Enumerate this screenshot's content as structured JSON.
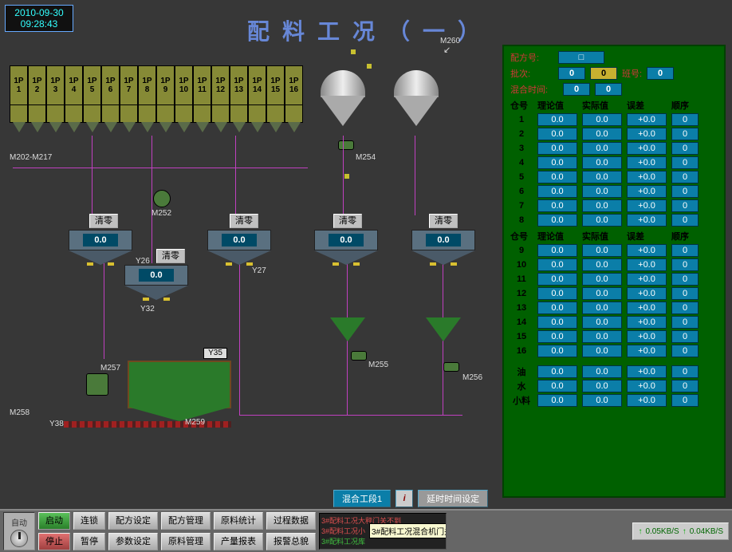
{
  "datetime": {
    "date": "2010-09-30",
    "time": "09:28:43"
  },
  "title": "配料工况（一）",
  "bins": [
    "1P1",
    "1P2",
    "1P3",
    "1P4",
    "1P5",
    "1P6",
    "1P7",
    "1P8",
    "1P9",
    "1P10",
    "1P11",
    "1P12",
    "1P13",
    "1P14",
    "1P15",
    "1P16"
  ],
  "bin_range_label": "M202-M217",
  "qingling": "清零",
  "scales": {
    "s1": "0.0",
    "s2": "0.0",
    "s3": "0.0",
    "s4": "0.0",
    "s5": "0.0"
  },
  "labels": {
    "M252": "M252",
    "M254": "M254",
    "M255": "M255",
    "M256": "M256",
    "M257": "M257",
    "M258": "M258",
    "M259": "M259",
    "M260": "M260",
    "Y26": "Y26",
    "Y27": "Y27",
    "Y32": "Y32",
    "Y35": "Y35",
    "Y38": "Y38"
  },
  "side": {
    "recipe_label": "配方号:",
    "recipe": "□",
    "batch_label": "批次:",
    "batch1": "0",
    "batch2": "0",
    "shift_label": "班号:",
    "shift": "0",
    "mixtime_label": "混合时间:",
    "mt1": "0",
    "mt2": "0",
    "hdr": [
      "仓号",
      "理论值",
      "实际值",
      "误差",
      "顺序"
    ],
    "rows1": [
      {
        "i": "1",
        "t": "0.0",
        "a": "0.0",
        "e": "+0.0",
        "o": "0"
      },
      {
        "i": "2",
        "t": "0.0",
        "a": "0.0",
        "e": "+0.0",
        "o": "0"
      },
      {
        "i": "3",
        "t": "0.0",
        "a": "0.0",
        "e": "+0.0",
        "o": "0"
      },
      {
        "i": "4",
        "t": "0.0",
        "a": "0.0",
        "e": "+0.0",
        "o": "0"
      },
      {
        "i": "5",
        "t": "0.0",
        "a": "0.0",
        "e": "+0.0",
        "o": "0"
      },
      {
        "i": "6",
        "t": "0.0",
        "a": "0.0",
        "e": "+0.0",
        "o": "0"
      },
      {
        "i": "7",
        "t": "0.0",
        "a": "0.0",
        "e": "+0.0",
        "o": "0"
      },
      {
        "i": "8",
        "t": "0.0",
        "a": "0.0",
        "e": "+0.0",
        "o": "0"
      }
    ],
    "rows2": [
      {
        "i": "9",
        "t": "0.0",
        "a": "0.0",
        "e": "+0.0",
        "o": "0"
      },
      {
        "i": "10",
        "t": "0.0",
        "a": "0.0",
        "e": "+0.0",
        "o": "0"
      },
      {
        "i": "11",
        "t": "0.0",
        "a": "0.0",
        "e": "+0.0",
        "o": "0"
      },
      {
        "i": "12",
        "t": "0.0",
        "a": "0.0",
        "e": "+0.0",
        "o": "0"
      },
      {
        "i": "13",
        "t": "0.0",
        "a": "0.0",
        "e": "+0.0",
        "o": "0"
      },
      {
        "i": "14",
        "t": "0.0",
        "a": "0.0",
        "e": "+0.0",
        "o": "0"
      },
      {
        "i": "15",
        "t": "0.0",
        "a": "0.0",
        "e": "+0.0",
        "o": "0"
      },
      {
        "i": "16",
        "t": "0.0",
        "a": "0.0",
        "e": "+0.0",
        "o": "0"
      }
    ],
    "extras": [
      {
        "i": "油",
        "t": "0.0",
        "a": "0.0",
        "e": "+0.0",
        "o": "0"
      },
      {
        "i": "水",
        "t": "0.0",
        "a": "0.0",
        "e": "+0.0",
        "o": "0"
      },
      {
        "i": "小料",
        "t": "0.0",
        "a": "0.0",
        "e": "+0.0",
        "o": "0"
      }
    ]
  },
  "mid": {
    "mix": "混合工段1",
    "delay": "延时时间设定"
  },
  "bottom": {
    "auto": "自动",
    "start": "启动",
    "stop": "停止",
    "chain": "连锁",
    "pause": "暂停",
    "b1": "配方设定",
    "b2": "参数设定",
    "b3": "配方管理",
    "b4": "原料管理",
    "b5": "原料统计",
    "b6": "产量报表",
    "b7": "过程数据",
    "b8": "报警总貌"
  },
  "alarms": {
    "a1": "3#配料工况大秤门关不到",
    "a2": "3#配料工况小",
    "a3": "3#配料工况库",
    "tooltip": "3#配料工况混合机门关不到位"
  },
  "net": {
    "up": "0.05KB/S",
    "dn": "0.04KB/S"
  },
  "colors": {
    "bg": "#373737",
    "panel": "#006000",
    "field": "#0b7ea8",
    "title": "#6787d7",
    "pipe": "#c040c0",
    "bin": "#868a36"
  }
}
